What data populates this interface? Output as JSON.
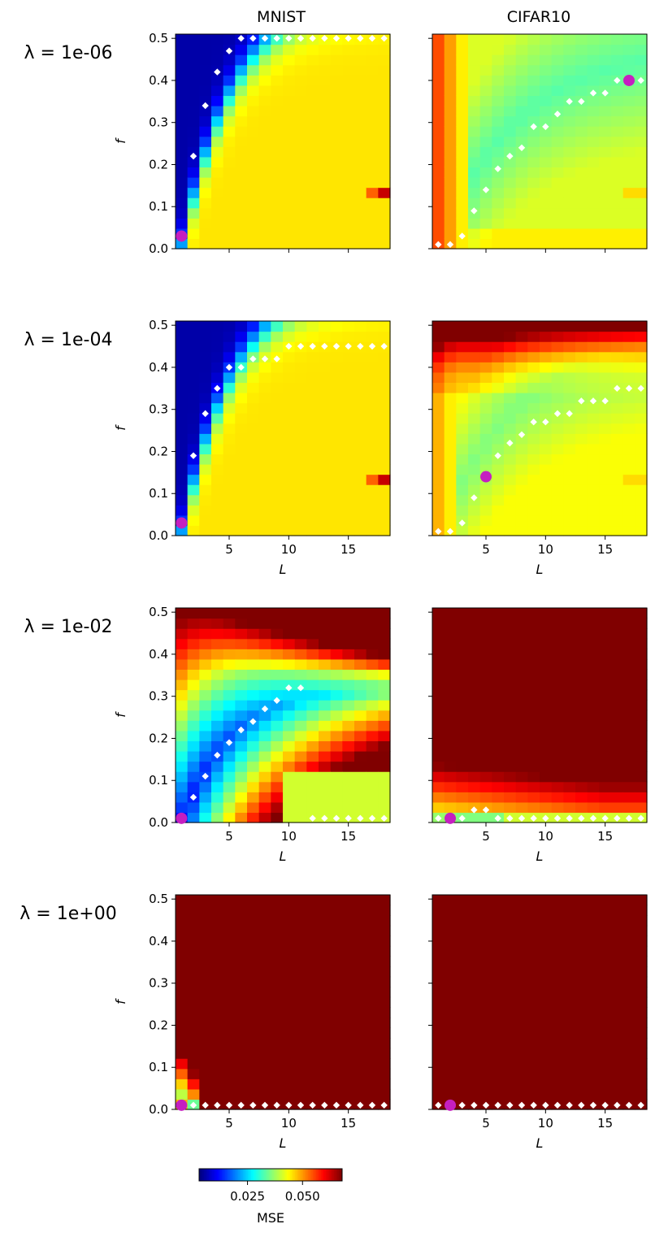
{
  "columns": [
    "MNIST",
    "CIFAR10"
  ],
  "row_labels": [
    "λ = 1e-06",
    "λ = 1e-04",
    "λ = 1e-02",
    "λ = 1e+00"
  ],
  "colorbar": {
    "label": "MSE",
    "colormap": "jet",
    "ticks": [
      "0.025",
      "0.050"
    ],
    "range": [
      0.003,
      0.068
    ]
  },
  "chart_data": {
    "type": "heatmap",
    "layout": "4 rows (lambda) x 2 columns (dataset)",
    "xlabel": "L",
    "ylabel": "f",
    "xlim": [
      0.5,
      18.5
    ],
    "ylim": [
      0,
      0.51
    ],
    "xticks": [
      5,
      10,
      15
    ],
    "yticks": [
      0.0,
      0.1,
      0.2,
      0.3,
      0.4,
      0.5
    ],
    "x_label_shown_on_rows": [
      2,
      3,
      4
    ],
    "grid": false,
    "panels": [
      {
        "dataset": "MNIST",
        "lambda": "1e-06",
        "regime": "mnist_low",
        "min_point": [
          1,
          0.03
        ],
        "argmin_f": [
          0.03,
          0.22,
          0.34,
          0.42,
          0.47,
          0.5,
          0.5,
          0.5,
          0.5,
          0.5,
          0.5,
          0.5,
          0.5,
          0.5,
          0.5,
          0.5,
          0.5,
          0.5
        ]
      },
      {
        "dataset": "CIFAR10",
        "lambda": "1e-06",
        "regime": "cifar_low",
        "min_point": [
          17,
          0.4
        ],
        "argmin_f": [
          0.01,
          0.01,
          0.03,
          0.09,
          0.14,
          0.19,
          0.22,
          0.24,
          0.29,
          0.29,
          0.32,
          0.35,
          0.35,
          0.37,
          0.37,
          0.4,
          0.4,
          0.4
        ]
      },
      {
        "dataset": "MNIST",
        "lambda": "1e-04",
        "regime": "mnist_low",
        "min_point": [
          1,
          0.03
        ],
        "argmin_f": [
          0.03,
          0.19,
          0.29,
          0.35,
          0.4,
          0.4,
          0.42,
          0.42,
          0.42,
          0.45,
          0.45,
          0.45,
          0.45,
          0.45,
          0.45,
          0.45,
          0.45,
          0.45
        ]
      },
      {
        "dataset": "CIFAR10",
        "lambda": "1e-04",
        "regime": "cifar_mid",
        "min_point": [
          5,
          0.14
        ],
        "argmin_f": [
          0.01,
          0.01,
          0.03,
          0.09,
          0.14,
          0.19,
          0.22,
          0.24,
          0.27,
          0.27,
          0.29,
          0.29,
          0.32,
          0.32,
          0.32,
          0.35,
          0.35,
          0.35
        ]
      },
      {
        "dataset": "MNIST",
        "lambda": "1e-02",
        "regime": "mnist_high",
        "min_point": [
          1,
          0.01
        ],
        "argmin_f": [
          0.01,
          0.06,
          0.11,
          0.16,
          0.19,
          0.22,
          0.24,
          0.27,
          0.29,
          0.32,
          0.32,
          0.01,
          0.01,
          0.01,
          0.01,
          0.01,
          0.01,
          0.01
        ]
      },
      {
        "dataset": "CIFAR10",
        "lambda": "1e-02",
        "regime": "cifar_high",
        "min_point": [
          2,
          0.01
        ],
        "argmin_f": [
          0.01,
          0.01,
          0.01,
          0.03,
          0.03,
          0.01,
          0.01,
          0.01,
          0.01,
          0.01,
          0.01,
          0.01,
          0.01,
          0.01,
          0.01,
          0.01,
          0.01,
          0.01
        ]
      },
      {
        "dataset": "MNIST",
        "lambda": "1e+00",
        "regime": "mnist_vhigh",
        "min_point": [
          1,
          0.01
        ],
        "argmin_f": [
          0.01,
          0.01,
          0.01,
          0.01,
          0.01,
          0.01,
          0.01,
          0.01,
          0.01,
          0.01,
          0.01,
          0.01,
          0.01,
          0.01,
          0.01,
          0.01,
          0.01,
          0.01
        ]
      },
      {
        "dataset": "CIFAR10",
        "lambda": "1e+00",
        "regime": "cifar_vhigh",
        "min_point": [
          2,
          0.01
        ],
        "argmin_f": [
          0.01,
          0.01,
          0.01,
          0.01,
          0.01,
          0.01,
          0.01,
          0.01,
          0.01,
          0.01,
          0.01,
          0.01,
          0.01,
          0.01,
          0.01,
          0.01,
          0.01,
          0.01
        ]
      }
    ]
  }
}
